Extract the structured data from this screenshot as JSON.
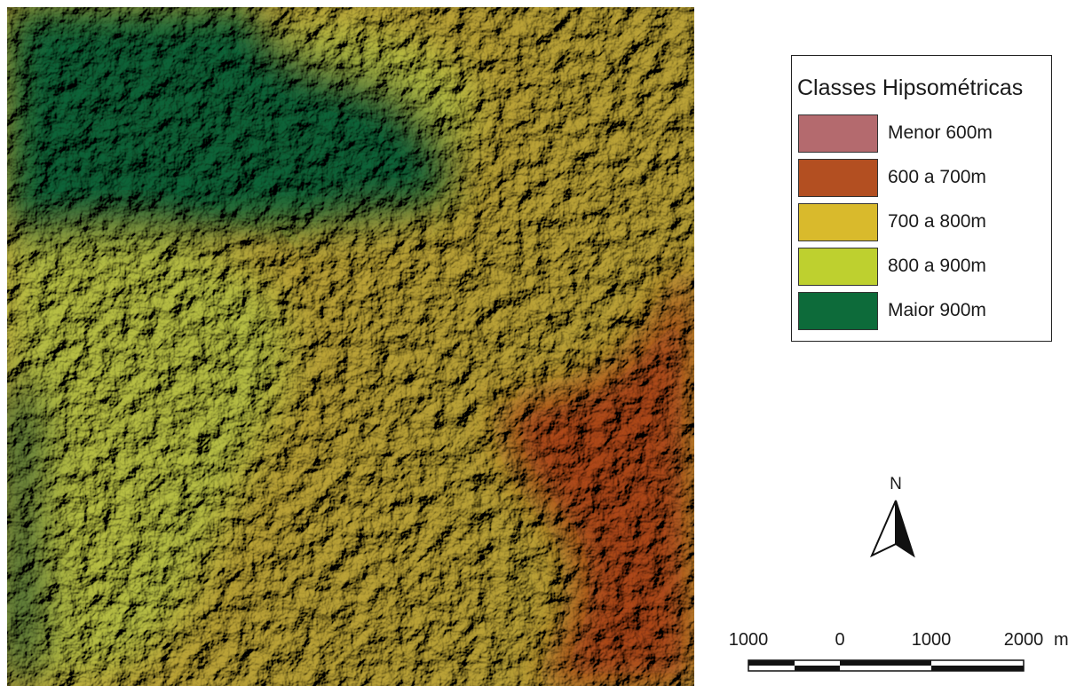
{
  "map": {
    "colors": {
      "menor_600": "#b46a6e",
      "c600_700": "#b34f21",
      "c700_800": "#d9ba2c",
      "c800_900": "#bed02f",
      "maior_900": "#0d6b3a",
      "terrain_low": "#9d4118",
      "terrain_mid": "#a99331",
      "terrain_high": "#a6ad3c",
      "terrain_top": "#0b5a31",
      "shadow": "#1a1a0e"
    }
  },
  "legend": {
    "title": "Classes Hipsométricas",
    "items": [
      {
        "label": "Menor 600m",
        "color": "#b46a6e"
      },
      {
        "label": "600 a 700m",
        "color": "#b34f21"
      },
      {
        "label": "700 a 800m",
        "color": "#d9ba2c"
      },
      {
        "label": "800 a 900m",
        "color": "#bed02f"
      },
      {
        "label": "Maior 900m",
        "color": "#0d6b3a"
      }
    ]
  },
  "north_arrow": {
    "letter": "N"
  },
  "scale_bar": {
    "labels": [
      "1000",
      "0",
      "1000",
      "2000"
    ],
    "unit": "m"
  }
}
